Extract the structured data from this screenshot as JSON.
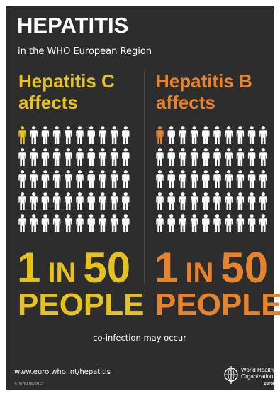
{
  "header": {
    "title": "HEPATITIS",
    "subtitle": "in the WHO European Region"
  },
  "panels": [
    {
      "name": "Hepatitis C",
      "verb": "affects",
      "count": "1",
      "joiner": "IN",
      "total": "50",
      "unit": "PEOPLE",
      "color": "#e6c220"
    },
    {
      "name": "Hepatitis B",
      "verb": "affects",
      "count": "1",
      "joiner": "IN",
      "total": "50",
      "unit": "PEOPLE",
      "color": "#e8832c"
    }
  ],
  "footer": {
    "note": "co-infection may occur",
    "url": "www.euro.who.int/hepatitis",
    "copyright": "© WHO 08/2015",
    "org_line1": "World Health",
    "org_line2": "Organization",
    "region": "Europe"
  }
}
